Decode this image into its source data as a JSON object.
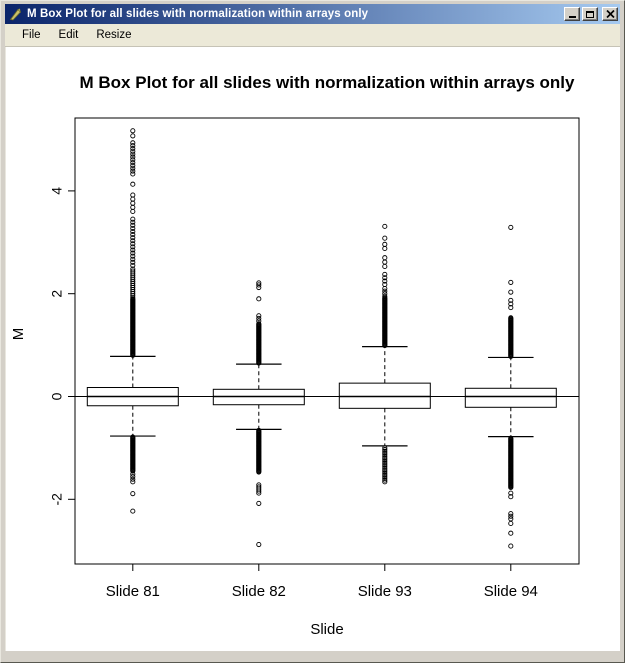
{
  "window": {
    "title": "M Box Plot for all slides with normalization within arrays only",
    "icon": "quill-pen-icon",
    "controls": [
      {
        "name": "minimize"
      },
      {
        "name": "maximize"
      },
      {
        "name": "close"
      }
    ]
  },
  "menu": {
    "items": [
      {
        "label": "File"
      },
      {
        "label": "Edit"
      },
      {
        "label": "Resize"
      }
    ]
  },
  "colors": {
    "titlebar_gradient_start": "#0a246a",
    "titlebar_gradient_end": "#a6caf0",
    "titlebar_text": "#ffffff",
    "window_bg": "#d4d0c8",
    "menubar_bg": "#ece9d8",
    "canvas_bg": "#ffffff",
    "plot_stroke": "#000000"
  },
  "chart_data": {
    "type": "boxplot",
    "title": "M Box Plot for all slides with normalization within arrays only",
    "xlabel": "Slide",
    "ylabel": "M",
    "categories": [
      "Slide 81",
      "Slide 82",
      "Slide 93",
      "Slide 94"
    ],
    "yticks": [
      -2,
      0,
      2,
      4
    ],
    "ylim": [
      -3.25,
      5.42
    ],
    "refline": 0,
    "grid": false,
    "whisker_style": "dashed",
    "series": [
      {
        "name": "Slide 81",
        "stats": {
          "median": 0.0,
          "q1": -0.18,
          "q3": 0.175,
          "whisker_low": -0.77,
          "whisker_high": 0.78
        },
        "outliers_upper": {
          "clusters": [
            {
              "from": 0.8,
              "to": 1.9,
              "step": 0.015
            },
            {
              "from": 1.92,
              "to": 2.48,
              "step": 0.04
            },
            {
              "from": 2.55,
              "to": 3.5,
              "step": 0.06
            },
            {
              "from": 3.6,
              "to": 3.92,
              "step": 0.08
            },
            {
              "from": 4.33,
              "to": 4.95,
              "step": 0.055
            }
          ],
          "points": [
            4.13,
            5.07,
            5.17
          ]
        },
        "outliers_lower": {
          "clusters": [
            {
              "from": -1.45,
              "to": -0.79,
              "step": 0.015
            },
            {
              "from": -1.66,
              "to": -1.5,
              "step": 0.05
            }
          ],
          "points": [
            -1.89,
            -2.23
          ]
        }
      },
      {
        "name": "Slide 82",
        "stats": {
          "median": 0.0,
          "q1": -0.16,
          "q3": 0.14,
          "whisker_low": -0.64,
          "whisker_high": 0.63
        },
        "outliers_upper": {
          "clusters": [
            {
              "from": 0.65,
              "to": 1.42,
              "step": 0.015
            }
          ],
          "points": [
            1.47,
            1.52,
            1.57,
            1.9,
            2.12,
            2.17,
            2.21
          ]
        },
        "outliers_lower": {
          "clusters": [
            {
              "from": -1.47,
              "to": -0.66,
              "step": 0.015
            },
            {
              "from": -1.88,
              "to": -1.72,
              "step": 0.04
            }
          ],
          "points": [
            -2.08,
            -2.88
          ]
        }
      },
      {
        "name": "Slide 93",
        "stats": {
          "median": 0.0,
          "q1": -0.23,
          "q3": 0.26,
          "whisker_low": -0.96,
          "whisker_high": 0.97
        },
        "outliers_upper": {
          "clusters": [
            {
              "from": 0.99,
              "to": 1.93,
              "step": 0.015
            },
            {
              "from": 1.95,
              "to": 2.1,
              "step": 0.05
            },
            {
              "from": 2.18,
              "to": 2.38,
              "step": 0.065
            },
            {
              "from": 2.53,
              "to": 2.7,
              "step": 0.085
            }
          ],
          "points": [
            2.88,
            2.96,
            3.08,
            3.31
          ]
        },
        "outliers_lower": {
          "clusters": [
            {
              "from": -1.66,
              "to": -0.98,
              "step": 0.033
            }
          ],
          "points": []
        }
      },
      {
        "name": "Slide 94",
        "stats": {
          "median": 0.0,
          "q1": -0.21,
          "q3": 0.16,
          "whisker_low": -0.78,
          "whisker_high": 0.76
        },
        "outliers_upper": {
          "clusters": [
            {
              "from": 0.78,
              "to": 1.54,
              "step": 0.015
            },
            {
              "from": 1.73,
              "to": 1.87,
              "step": 0.07
            }
          ],
          "points": [
            2.03,
            2.22,
            3.29
          ]
        },
        "outliers_lower": {
          "clusters": [
            {
              "from": -1.77,
              "to": -0.8,
              "step": 0.015
            },
            {
              "from": -2.38,
              "to": -2.28,
              "step": 0.05
            }
          ],
          "points": [
            -1.88,
            -1.95,
            -2.47,
            -2.66,
            -2.91
          ]
        }
      }
    ]
  }
}
